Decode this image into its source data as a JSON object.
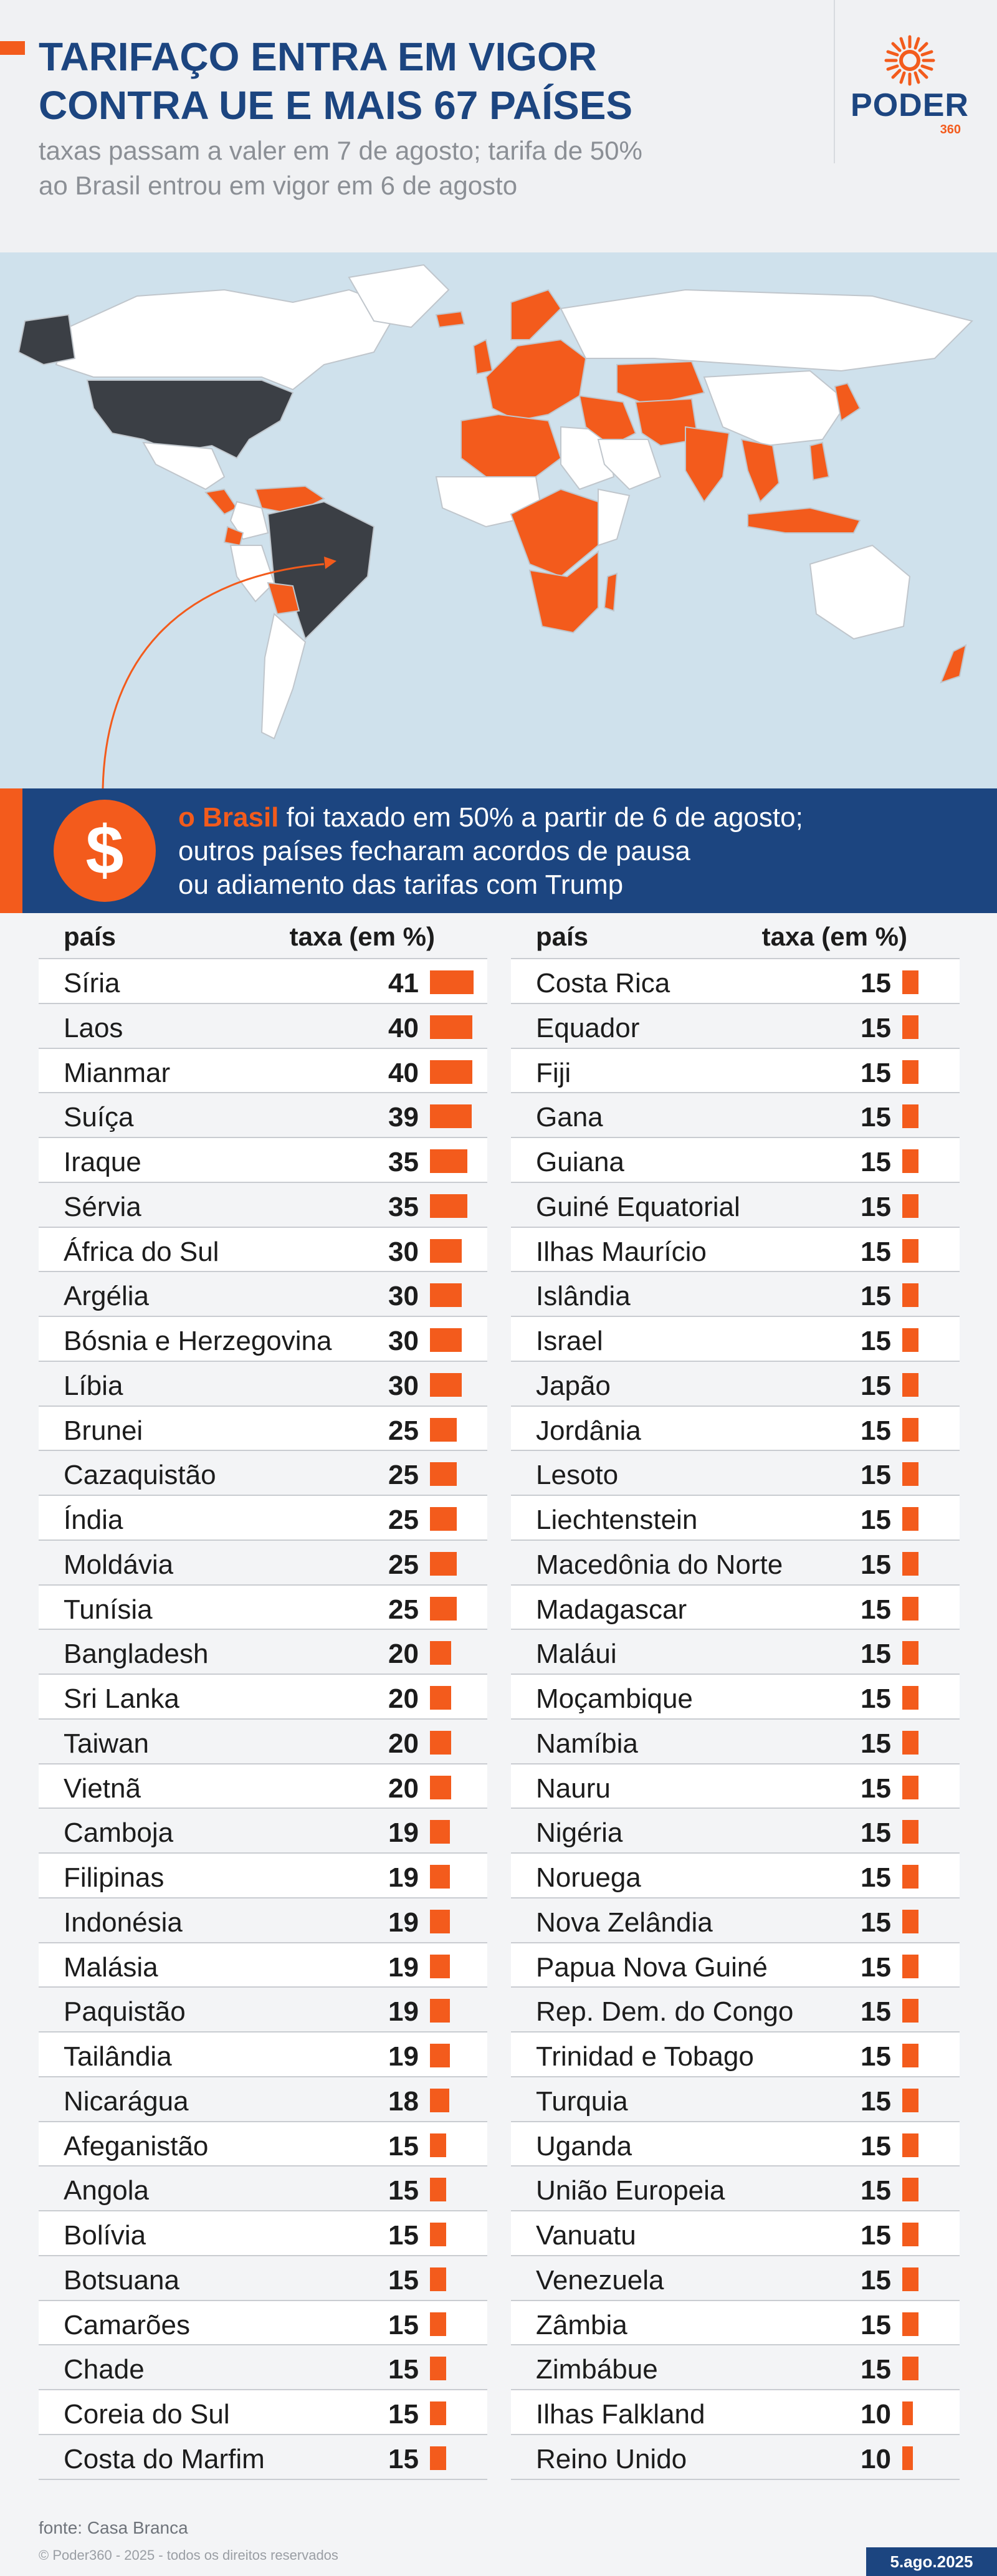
{
  "header": {
    "title_line1": "TARIFAÇO ENTRA EM VIGOR",
    "title_line2": "CONTRA UE E MAIS 67 PAÍSES",
    "subtitle_line1": "taxas passam a valer em 7 de agosto; tarifa de 50%",
    "subtitle_line2": "ao Brasil entrou em vigor em 6 de agosto",
    "logo_word": "PODER",
    "logo_number": "360"
  },
  "map": {
    "description_colors": {
      "taxed": "#f35b1c",
      "usa": "#3b3f45",
      "brasil": "#3b3f45",
      "other": "#ffffff",
      "ocean": "#cfe1ec"
    }
  },
  "banner": {
    "icon": "dollar-icon",
    "icon_glyph": "$",
    "highlight": "o Brasil",
    "line1_rest": " foi taxado em 50% a partir de 6 de agosto;",
    "line2": "outros países fecharam acordos de pausa",
    "line3": "ou adiamento das tarifas com Trump"
  },
  "table": {
    "header_country": "país",
    "header_rate": "taxa (em %)"
  },
  "chart_data": {
    "type": "table",
    "columns": [
      "país",
      "taxa (em %)"
    ],
    "bar_color": "#f35b1c",
    "rows": [
      {
        "country": "Síria",
        "rate": 41
      },
      {
        "country": "Laos",
        "rate": 40
      },
      {
        "country": "Mianmar",
        "rate": 40
      },
      {
        "country": "Suíça",
        "rate": 39
      },
      {
        "country": "Iraque",
        "rate": 35
      },
      {
        "country": "Sérvia",
        "rate": 35
      },
      {
        "country": "África do Sul",
        "rate": 30
      },
      {
        "country": "Argélia",
        "rate": 30
      },
      {
        "country": "Bósnia e Herzegovina",
        "rate": 30
      },
      {
        "country": "Líbia",
        "rate": 30
      },
      {
        "country": "Brunei",
        "rate": 25
      },
      {
        "country": "Cazaquistão",
        "rate": 25
      },
      {
        "country": "Índia",
        "rate": 25
      },
      {
        "country": "Moldávia",
        "rate": 25
      },
      {
        "country": "Tunísia",
        "rate": 25
      },
      {
        "country": "Bangladesh",
        "rate": 20
      },
      {
        "country": "Sri Lanka",
        "rate": 20
      },
      {
        "country": "Taiwan",
        "rate": 20
      },
      {
        "country": "Vietnã",
        "rate": 20
      },
      {
        "country": "Camboja",
        "rate": 19
      },
      {
        "country": "Filipinas",
        "rate": 19
      },
      {
        "country": "Indonésia",
        "rate": 19
      },
      {
        "country": "Malásia",
        "rate": 19
      },
      {
        "country": "Paquistão",
        "rate": 19
      },
      {
        "country": "Tailândia",
        "rate": 19
      },
      {
        "country": "Nicarágua",
        "rate": 18
      },
      {
        "country": "Afeganistão",
        "rate": 15
      },
      {
        "country": "Angola",
        "rate": 15
      },
      {
        "country": "Bolívia",
        "rate": 15
      },
      {
        "country": "Botsuana",
        "rate": 15
      },
      {
        "country": "Camarões",
        "rate": 15
      },
      {
        "country": "Chade",
        "rate": 15
      },
      {
        "country": "Coreia do Sul",
        "rate": 15
      },
      {
        "country": "Costa do Marfim",
        "rate": 15
      },
      {
        "country": "Costa Rica",
        "rate": 15
      },
      {
        "country": "Equador",
        "rate": 15
      },
      {
        "country": "Fiji",
        "rate": 15
      },
      {
        "country": "Gana",
        "rate": 15
      },
      {
        "country": "Guiana",
        "rate": 15
      },
      {
        "country": "Guiné Equatorial",
        "rate": 15
      },
      {
        "country": "Ilhas Maurício",
        "rate": 15
      },
      {
        "country": "Islândia",
        "rate": 15
      },
      {
        "country": "Israel",
        "rate": 15
      },
      {
        "country": "Japão",
        "rate": 15
      },
      {
        "country": "Jordânia",
        "rate": 15
      },
      {
        "country": "Lesoto",
        "rate": 15
      },
      {
        "country": "Liechtenstein",
        "rate": 15
      },
      {
        "country": "Macedônia do Norte",
        "rate": 15
      },
      {
        "country": "Madagascar",
        "rate": 15
      },
      {
        "country": "Maláui",
        "rate": 15
      },
      {
        "country": "Moçambique",
        "rate": 15
      },
      {
        "country": "Namíbia",
        "rate": 15
      },
      {
        "country": "Nauru",
        "rate": 15
      },
      {
        "country": "Nigéria",
        "rate": 15
      },
      {
        "country": "Noruega",
        "rate": 15
      },
      {
        "country": "Nova Zelândia",
        "rate": 15
      },
      {
        "country": "Papua Nova Guiné",
        "rate": 15
      },
      {
        "country": "Rep. Dem. do Congo",
        "rate": 15
      },
      {
        "country": "Trinidad e Tobago",
        "rate": 15
      },
      {
        "country": "Turquia",
        "rate": 15
      },
      {
        "country": "Uganda",
        "rate": 15
      },
      {
        "country": "União Europeia",
        "rate": 15
      },
      {
        "country": "Vanuatu",
        "rate": 15
      },
      {
        "country": "Venezuela",
        "rate": 15
      },
      {
        "country": "Zâmbia",
        "rate": 15
      },
      {
        "country": "Zimbábue",
        "rate": 15
      },
      {
        "country": "Ilhas Falkland",
        "rate": 10
      },
      {
        "country": "Reino Unido",
        "rate": 10
      }
    ]
  },
  "footer": {
    "source": "fonte: Casa Branca",
    "copyright": "© Poder360 - 2025 - todos os direitos reservados",
    "date": "5.ago.2025"
  }
}
